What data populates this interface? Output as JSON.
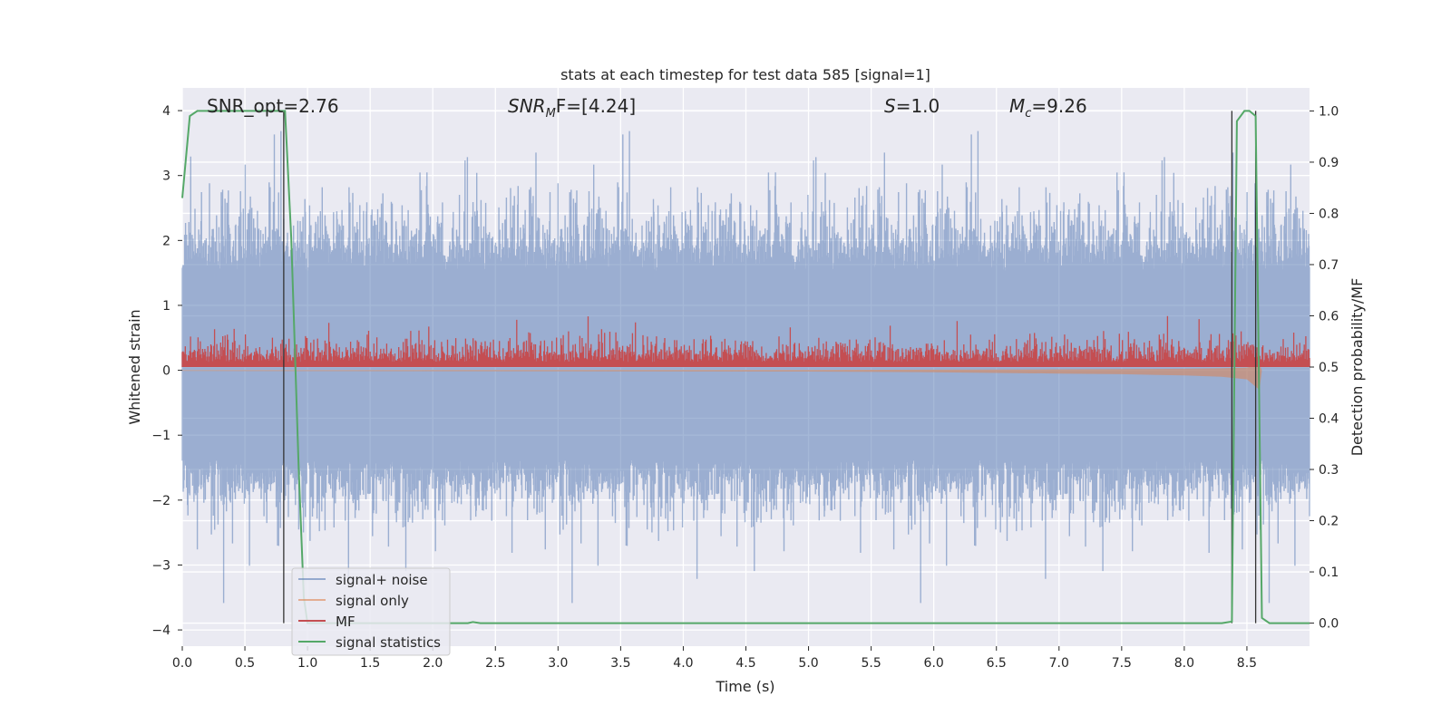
{
  "chart_data": {
    "type": "line",
    "title": "stats at each timestep for test data 585 [signal=1]",
    "xlabel": "Time (s)",
    "ylabel_left": "Whitened strain",
    "ylabel_right": "Detection probability/MF",
    "xlim": [
      0.0,
      9.0
    ],
    "ylim_left": [
      -4.25,
      4.35
    ],
    "ylim_right": [
      -0.045,
      1.045
    ],
    "x_ticks": [
      "0.0",
      "0.5",
      "1.0",
      "1.5",
      "2.0",
      "2.5",
      "3.0",
      "3.5",
      "4.0",
      "4.5",
      "5.0",
      "5.5",
      "6.0",
      "6.5",
      "7.0",
      "7.5",
      "8.0",
      "8.5"
    ],
    "y_ticks_left": [
      "4",
      "3",
      "2",
      "1",
      "0",
      "−1",
      "−2",
      "−3",
      "−4"
    ],
    "y_ticks_right": [
      "1.0",
      "0.9",
      "0.8",
      "0.7",
      "0.6",
      "0.5",
      "0.4",
      "0.3",
      "0.2",
      "0.1",
      "0.0"
    ],
    "grid": true,
    "legend_position": "lower-left",
    "annotations": {
      "snr_opt": "SNR_opt=2.76",
      "snr_mf_prefix": "SNR",
      "snr_mf_sub": "M",
      "snr_mf_suffix": "F=[4.24]",
      "s_italic": "S",
      "s_value": "=1.0",
      "mc_italic": "M",
      "mc_sub": "c",
      "mc_value": "=9.26"
    },
    "series": [
      {
        "name": "signal+ noise",
        "color": "#4c72b0",
        "axis": "left",
        "description_values": {
          "typical_band": [
            -1.45,
            1.7
          ],
          "max_spikes": [
            4.0,
            -3.8
          ]
        }
      },
      {
        "name": "signal only",
        "color": "#dd8452",
        "axis": "left",
        "x": [
          0.0,
          5.0,
          6.0,
          7.0,
          7.5,
          8.0,
          8.3,
          8.5,
          8.6,
          8.62
        ],
        "envelope": [
          0.01,
          0.02,
          0.03,
          0.05,
          0.06,
          0.08,
          0.1,
          0.14,
          0.3,
          0.0
        ]
      },
      {
        "name": "MF",
        "color": "#c44e52",
        "axis": "right",
        "typical_band": [
          0.5,
          0.58
        ],
        "max": 0.6
      },
      {
        "name": "signal statistics",
        "color": "#55a868",
        "axis": "right",
        "x": [
          0.0,
          0.06,
          0.12,
          0.2,
          0.4,
          0.6,
          0.75,
          0.82,
          0.87,
          0.93,
          0.97,
          1.0,
          1.5,
          2.0,
          2.28,
          2.32,
          2.38,
          3.0,
          4.0,
          5.0,
          6.0,
          7.0,
          8.0,
          8.3,
          8.38,
          8.42,
          8.48,
          8.52,
          8.57,
          8.62,
          8.68,
          8.8,
          9.0
        ],
        "values": [
          0.83,
          0.99,
          1.0,
          1.0,
          1.0,
          1.0,
          1.0,
          1.0,
          0.75,
          0.3,
          0.05,
          0.0,
          0.0,
          0.0,
          0.0,
          0.002,
          0.0,
          0.0,
          0.0,
          0.0,
          0.0,
          0.0,
          0.0,
          0.0,
          0.003,
          0.98,
          1.0,
          1.0,
          0.99,
          0.01,
          0.0,
          0.0,
          0.0
        ]
      }
    ],
    "vertical_lines_x": [
      0.81,
      8.38,
      8.57
    ]
  }
}
